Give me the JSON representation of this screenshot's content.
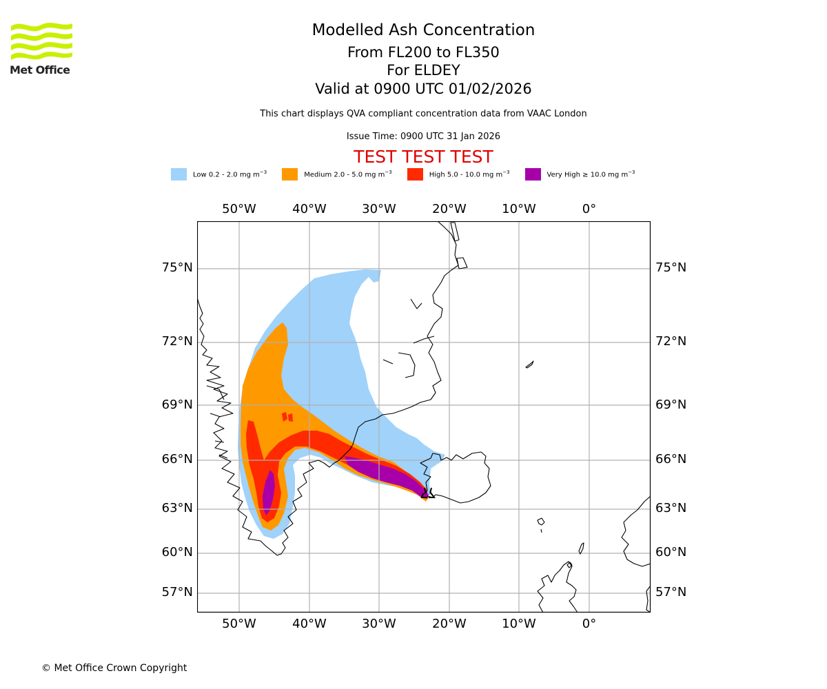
{
  "header": {
    "brand": "Met Office",
    "title": "Modelled Ash Concentration",
    "level_range": "From FL200 to FL350",
    "volcano": "For ELDEY",
    "valid_time": "Valid at 0900 UTC 01/02/2026",
    "note": "This chart displays QVA compliant concentration data from VAAC London",
    "issue_time": "Issue Time: 0900 UTC 31 Jan 2026",
    "test_banner": "TEST TEST TEST"
  },
  "legend": [
    {
      "name": "Low",
      "range": "0.2 - 2.0",
      "unit": "mg m",
      "exp": "−3",
      "color": "#a0d2fa"
    },
    {
      "name": "Medium",
      "range": "2.0 - 5.0",
      "unit": "mg m",
      "exp": "−3",
      "color": "#ff9900"
    },
    {
      "name": "High",
      "range": "5.0 - 10.0",
      "unit": "mg m",
      "exp": "−3",
      "color": "#ff2a00"
    },
    {
      "name": "Very High",
      "range": "≥  10.0",
      "unit": "mg m",
      "exp": "−3",
      "color": "#a800a8"
    }
  ],
  "map": {
    "longitude_labels": [
      "50°W",
      "40°W",
      "30°W",
      "20°W",
      "10°W",
      "0°"
    ],
    "latitude_labels": [
      "75°N",
      "72°N",
      "69°N",
      "66°N",
      "63°N",
      "60°N",
      "57°N"
    ],
    "extent": {
      "lon_min": -56,
      "lon_max": 8.5,
      "lat_min": 55.5,
      "lat_max": 77
    },
    "source_marker": "ELDEY vent (Reykjanes ridge, SW Iceland)",
    "colors": {
      "grid": "#b0b0b0",
      "coast": "#000000",
      "frame": "#000000"
    }
  },
  "footer": {
    "copyright": "© Met Office Crown Copyright"
  }
}
